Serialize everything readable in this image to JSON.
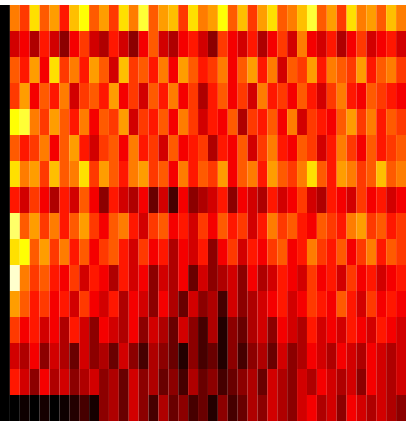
{
  "chart_data": {
    "type": "heatmap",
    "color": "hot",
    "zlim": [
      0,
      1
    ],
    "tick_labels": false,
    "cells": [
      [
        0,
        0.55,
        0.45,
        0.7,
        0.5,
        0.6,
        0.4,
        0.65,
        0.75,
        0.5,
        0.6,
        0.45,
        0.7,
        0.55,
        0.8,
        0.5,
        0.6,
        0.65,
        0.45,
        0.7,
        0.55,
        0.6,
        0.75,
        0.5,
        0.65,
        0.45,
        0.6,
        0.7,
        0.5,
        0.55,
        0.65,
        0.8,
        0.5,
        0.6,
        0.45,
        0.7,
        0.55,
        0.6,
        0.5,
        0.65,
        0.55
      ],
      [
        0,
        0.3,
        0.35,
        0.25,
        0.4,
        0.3,
        0.2,
        0.35,
        0.45,
        0.3,
        0.25,
        0.4,
        0.3,
        0.2,
        0.35,
        0.5,
        0.3,
        0.25,
        0.35,
        0.4,
        0.3,
        0.2,
        0.45,
        0.35,
        0.3,
        0.4,
        0.25,
        0.35,
        0.45,
        0.3,
        0.55,
        0.35,
        0.3,
        0.4,
        0.25,
        0.35,
        0.45,
        0.3,
        0.35,
        0.4,
        0.3
      ],
      [
        0,
        0.5,
        0.4,
        0.6,
        0.35,
        0.7,
        0.45,
        0.55,
        0.4,
        0.6,
        0.5,
        0.3,
        0.65,
        0.45,
        0.5,
        0.4,
        0.55,
        0.35,
        0.6,
        0.5,
        0.4,
        0.45,
        0.55,
        0.35,
        0.5,
        0.6,
        0.4,
        0.55,
        0.3,
        0.5,
        0.45,
        0.6,
        0.4,
        0.55,
        0.5,
        0.45,
        0.6,
        0.4,
        0.5,
        0.55,
        0.45
      ],
      [
        0,
        0.45,
        0.6,
        0.35,
        0.5,
        0.4,
        0.55,
        0.3,
        0.45,
        0.5,
        0.4,
        0.6,
        0.35,
        0.45,
        0.3,
        0.5,
        0.4,
        0.55,
        0.35,
        0.45,
        0.25,
        0.4,
        0.5,
        0.35,
        0.45,
        0.3,
        0.55,
        0.4,
        0.45,
        0.35,
        0.5,
        0.4,
        0.3,
        0.45,
        0.55,
        0.4,
        0.35,
        0.5,
        0.45,
        0.4,
        0.35
      ],
      [
        0,
        0.75,
        0.8,
        0.55,
        0.45,
        0.6,
        0.5,
        0.4,
        0.55,
        0.35,
        0.5,
        0.45,
        0.6,
        0.3,
        0.45,
        0.4,
        0.5,
        0.35,
        0.55,
        0.45,
        0.3,
        0.4,
        0.35,
        0.5,
        0.25,
        0.45,
        0.4,
        0.5,
        0.35,
        0.55,
        0.3,
        0.45,
        0.4,
        0.35,
        0.5,
        0.6,
        0.45,
        0.55,
        0.4,
        0.5,
        0.45
      ],
      [
        0,
        0.5,
        0.4,
        0.45,
        0.55,
        0.35,
        0.5,
        0.6,
        0.4,
        0.3,
        0.45,
        0.5,
        0.35,
        0.55,
        0.4,
        0.45,
        0.3,
        0.5,
        0.35,
        0.4,
        0.45,
        0.25,
        0.4,
        0.35,
        0.5,
        0.3,
        0.45,
        0.55,
        0.4,
        0.35,
        0.5,
        0.45,
        0.3,
        0.4,
        0.55,
        0.45,
        0.35,
        0.5,
        0.4,
        0.45,
        0.5
      ],
      [
        0,
        0.7,
        0.55,
        0.6,
        0.45,
        0.65,
        0.5,
        0.55,
        0.7,
        0.45,
        0.6,
        0.5,
        0.4,
        0.55,
        0.6,
        0.45,
        0.5,
        0.35,
        0.55,
        0.4,
        0.5,
        0.45,
        0.6,
        0.35,
        0.5,
        0.55,
        0.4,
        0.6,
        0.5,
        0.45,
        0.55,
        0.7,
        0.5,
        0.4,
        0.6,
        0.55,
        0.45,
        0.5,
        0.65,
        0.5,
        0.55
      ],
      [
        0,
        0.4,
        0.3,
        0.45,
        0.35,
        0.25,
        0.4,
        0.3,
        0.5,
        0.35,
        0.2,
        0.4,
        0.3,
        0.25,
        0.35,
        0.15,
        0.3,
        0.1,
        0.35,
        0.2,
        0.25,
        0.3,
        0.4,
        0.2,
        0.35,
        0.3,
        0.25,
        0.4,
        0.3,
        0.35,
        0.45,
        0.3,
        0.25,
        0.4,
        0.35,
        0.3,
        0.45,
        0.35,
        0.4,
        0.3,
        0.35
      ],
      [
        0,
        0.85,
        0.5,
        0.6,
        0.45,
        0.55,
        0.4,
        0.5,
        0.6,
        0.45,
        0.35,
        0.5,
        0.55,
        0.4,
        0.3,
        0.45,
        0.5,
        0.35,
        0.4,
        0.3,
        0.45,
        0.35,
        0.5,
        0.4,
        0.45,
        0.3,
        0.4,
        0.55,
        0.45,
        0.5,
        0.4,
        0.35,
        0.5,
        0.45,
        0.4,
        0.55,
        0.6,
        0.45,
        0.5,
        0.4,
        0.45
      ],
      [
        0,
        0.7,
        0.75,
        0.5,
        0.6,
        0.45,
        0.55,
        0.4,
        0.5,
        0.35,
        0.45,
        0.5,
        0.4,
        0.3,
        0.45,
        0.35,
        0.4,
        0.25,
        0.35,
        0.3,
        0.4,
        0.2,
        0.35,
        0.45,
        0.3,
        0.4,
        0.35,
        0.45,
        0.5,
        0.35,
        0.4,
        0.55,
        0.45,
        0.4,
        0.5,
        0.35,
        0.45,
        0.55,
        0.4,
        0.5,
        0.45
      ],
      [
        0,
        0.95,
        0.55,
        0.45,
        0.5,
        0.4,
        0.35,
        0.45,
        0.3,
        0.4,
        0.35,
        0.25,
        0.4,
        0.3,
        0.35,
        0.2,
        0.3,
        0.25,
        0.35,
        0.15,
        0.3,
        0.2,
        0.25,
        0.3,
        0.2,
        0.35,
        0.25,
        0.3,
        0.4,
        0.35,
        0.3,
        0.45,
        0.35,
        0.4,
        0.3,
        0.45,
        0.35,
        0.4,
        0.3,
        0.35,
        0.4
      ],
      [
        0,
        0.6,
        0.5,
        0.4,
        0.45,
        0.35,
        0.4,
        0.3,
        0.45,
        0.35,
        0.3,
        0.4,
        0.25,
        0.35,
        0.3,
        0.2,
        0.35,
        0.25,
        0.15,
        0.3,
        0.2,
        0.25,
        0.1,
        0.3,
        0.2,
        0.25,
        0.3,
        0.35,
        0.4,
        0.3,
        0.35,
        0.45,
        0.4,
        0.35,
        0.5,
        0.4,
        0.3,
        0.45,
        0.35,
        0.4,
        0.35
      ],
      [
        0,
        0.45,
        0.35,
        0.4,
        0.3,
        0.35,
        0.25,
        0.4,
        0.3,
        0.2,
        0.35,
        0.3,
        0.25,
        0.35,
        0.2,
        0.3,
        0.25,
        0.15,
        0.3,
        0.2,
        0.1,
        0.25,
        0.05,
        0.2,
        0.15,
        0.25,
        0.3,
        0.2,
        0.35,
        0.3,
        0.25,
        0.4,
        0.3,
        0.35,
        0.3,
        0.4,
        0.35,
        0.3,
        0.4,
        0.35,
        0.3
      ],
      [
        0,
        0.3,
        0.25,
        0.35,
        0.2,
        0.3,
        0.25,
        0.15,
        0.3,
        0.2,
        0.25,
        0.15,
        0.3,
        0.2,
        0.1,
        0.25,
        0.2,
        0.15,
        0.05,
        0.2,
        0.1,
        0.15,
        0.05,
        0.2,
        0.1,
        0.2,
        0.25,
        0.15,
        0.3,
        0.2,
        0.25,
        0.35,
        0.3,
        0.25,
        0.35,
        0.3,
        0.25,
        0.35,
        0.3,
        0.25,
        0.3
      ],
      [
        0,
        0.4,
        0.3,
        0.2,
        0.35,
        0.25,
        0.3,
        0.2,
        0.25,
        0.3,
        0.2,
        0.25,
        0.15,
        0.3,
        0.2,
        0.25,
        0.15,
        0.2,
        0.1,
        0.25,
        0.15,
        0.2,
        0.1,
        0.15,
        0.2,
        0.25,
        0.15,
        0.3,
        0.25,
        0.2,
        0.3,
        0.25,
        0.35,
        0.3,
        0.25,
        0.3,
        0.2,
        0.35,
        0.3,
        0.25,
        0.3
      ],
      [
        0,
        0,
        0.02,
        0,
        0.03,
        0,
        0.02,
        0.05,
        0.1,
        0.03,
        0.2,
        0.25,
        0.15,
        0.3,
        0.2,
        0.1,
        0.25,
        0.15,
        0.2,
        0.1,
        0.15,
        0.05,
        0.2,
        0.1,
        0.15,
        0.25,
        0.2,
        0.3,
        0.25,
        0.2,
        0.3,
        0.35,
        0.25,
        0.3,
        0.2,
        0.35,
        0.3,
        0.25,
        0.3,
        0.25,
        0.2
      ]
    ]
  }
}
